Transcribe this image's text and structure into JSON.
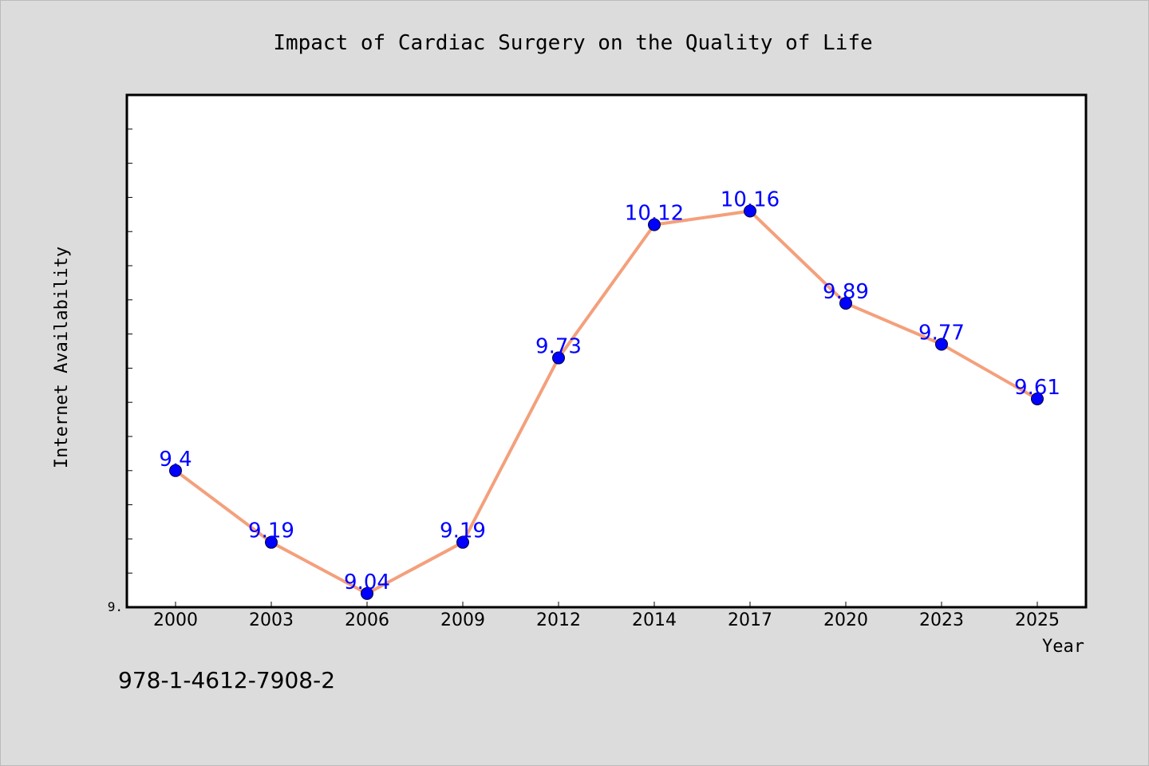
{
  "colors": {
    "background": "#dcdcdc",
    "plot_background": "#ffffff",
    "line": "#f4a07c",
    "marker": "#0000ff",
    "data_label": "#0000ff"
  },
  "footer_text": "978-1-4612-7908-2",
  "chart_data": {
    "type": "line",
    "title": "Impact of Cardiac Surgery on the Quality of Life",
    "xlabel": "Year",
    "ylabel": "Internet Availability",
    "categories": [
      "2000",
      "2003",
      "2006",
      "2009",
      "2012",
      "2014",
      "2017",
      "2020",
      "2023",
      "2025"
    ],
    "series": [
      {
        "values": [
          9.4,
          9.19,
          9.04,
          9.19,
          9.73,
          10.12,
          10.16,
          9.89,
          9.77,
          9.61
        ],
        "labels": [
          "9.4",
          "9.19",
          "9.04",
          "9.19",
          "9.73",
          "10.12",
          "10.16",
          "9.89",
          "9.77",
          "9.61"
        ]
      }
    ],
    "y_tick_labels": [
      "9."
    ],
    "ylim": [
      9.0,
      10.5
    ],
    "grid": false,
    "legend": "none"
  }
}
